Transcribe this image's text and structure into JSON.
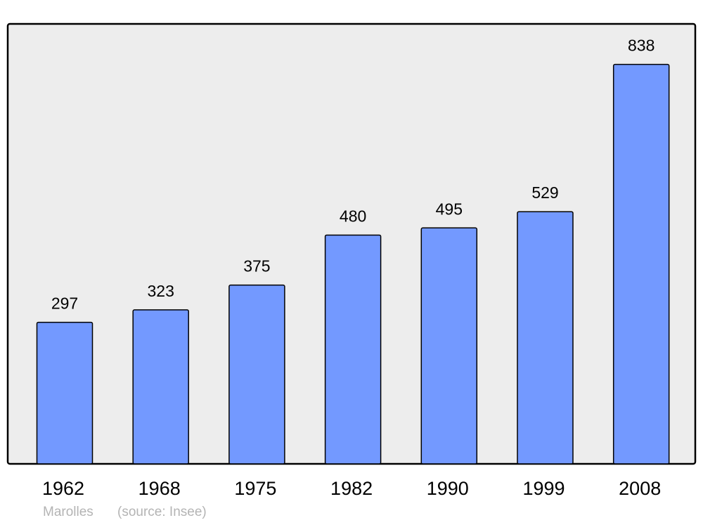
{
  "chart_data": {
    "type": "bar",
    "title": "",
    "xlabel": "",
    "ylabel": "",
    "categories": [
      "1962",
      "1968",
      "1975",
      "1982",
      "1990",
      "1999",
      "2008"
    ],
    "values": [
      297,
      323,
      375,
      480,
      495,
      529,
      838
    ],
    "data_labels": true,
    "ylim": [
      0,
      923
    ],
    "grid": false,
    "colors": {
      "bar": "#7399ff",
      "bar_stroke": "#000000",
      "plot_background": "#ededed",
      "page_background": "#ffffff"
    }
  },
  "footer": {
    "place": "Marolles",
    "source": "(source: Insee)",
    "color": "#b4b4b4"
  }
}
